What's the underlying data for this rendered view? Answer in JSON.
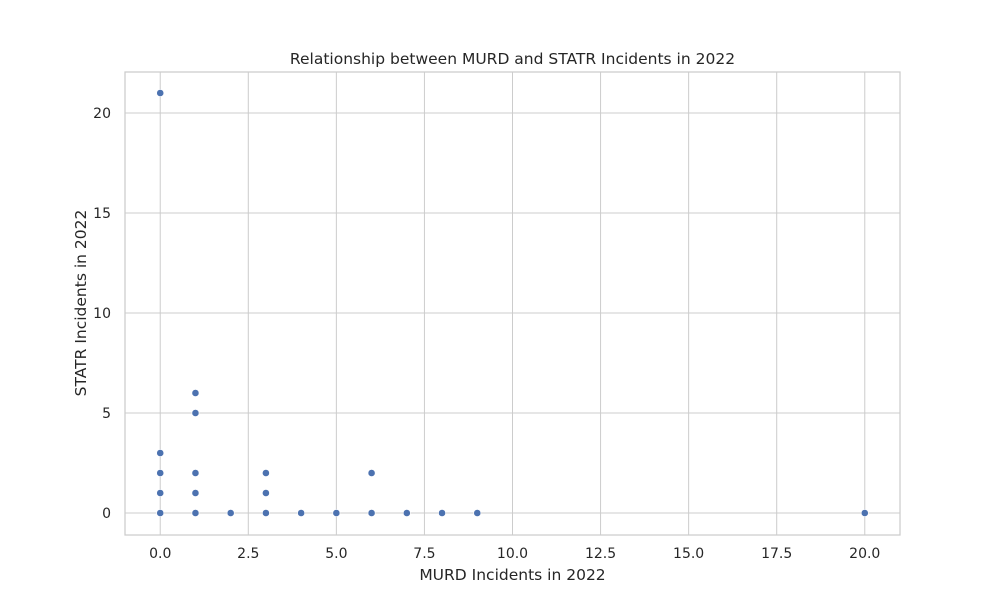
{
  "chart_data": {
    "type": "scatter",
    "title": "Relationship between MURD and STATR Incidents in 2022",
    "xlabel": "MURD Incidents in 2022",
    "ylabel": "STATR Incidents in 2022",
    "xlim": [
      -1,
      21
    ],
    "ylim": [
      -1.1,
      22.05
    ],
    "xticks": [
      0,
      2.5,
      5,
      7.5,
      10,
      12.5,
      15,
      17.5,
      20
    ],
    "xtick_labels": [
      "0.0",
      "2.5",
      "5.0",
      "7.5",
      "10.0",
      "12.5",
      "15.0",
      "17.5",
      "20.0"
    ],
    "yticks": [
      0,
      5,
      10,
      15,
      20
    ],
    "ytick_labels": [
      "0",
      "5",
      "10",
      "15",
      "20"
    ],
    "grid": true,
    "marker_color": "#4c72b0",
    "points": [
      {
        "x": 0,
        "y": 21
      },
      {
        "x": 0,
        "y": 3
      },
      {
        "x": 0,
        "y": 2
      },
      {
        "x": 0,
        "y": 1
      },
      {
        "x": 0,
        "y": 0
      },
      {
        "x": 1,
        "y": 6
      },
      {
        "x": 1,
        "y": 5
      },
      {
        "x": 1,
        "y": 2
      },
      {
        "x": 1,
        "y": 1
      },
      {
        "x": 1,
        "y": 0
      },
      {
        "x": 2,
        "y": 0
      },
      {
        "x": 3,
        "y": 2
      },
      {
        "x": 3,
        "y": 1
      },
      {
        "x": 3,
        "y": 0
      },
      {
        "x": 4,
        "y": 0
      },
      {
        "x": 5,
        "y": 0
      },
      {
        "x": 6,
        "y": 2
      },
      {
        "x": 6,
        "y": 0
      },
      {
        "x": 7,
        "y": 0
      },
      {
        "x": 8,
        "y": 0
      },
      {
        "x": 9,
        "y": 0
      },
      {
        "x": 20,
        "y": 0
      }
    ]
  }
}
